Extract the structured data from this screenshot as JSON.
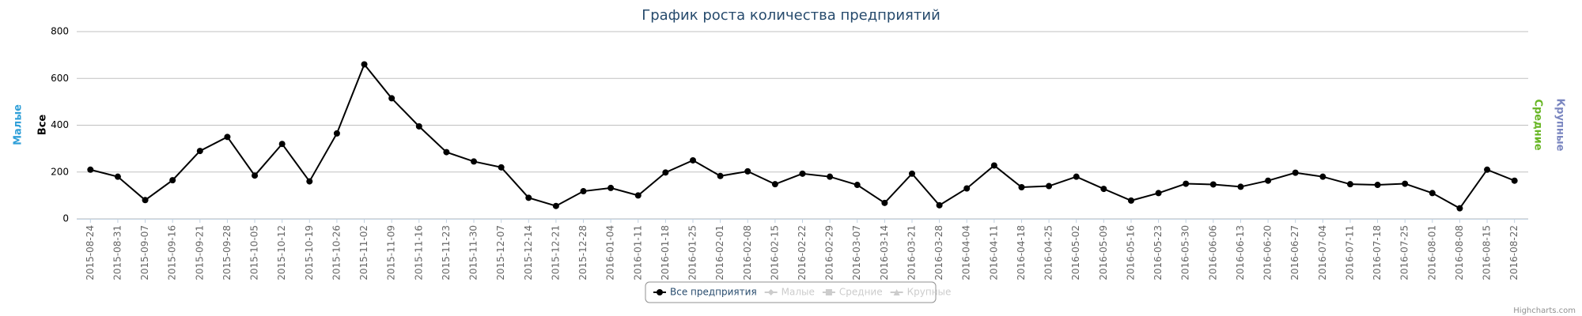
{
  "chart_data": {
    "type": "line",
    "title": "График роста количества предприятий",
    "categories": [
      "2015-08-24",
      "2015-08-31",
      "2015-09-07",
      "2015-09-16",
      "2015-09-21",
      "2015-09-28",
      "2015-10-05",
      "2015-10-12",
      "2015-10-19",
      "2015-10-26",
      "2015-11-02",
      "2015-11-09",
      "2015-11-16",
      "2015-11-23",
      "2015-11-30",
      "2015-12-07",
      "2015-12-14",
      "2015-12-21",
      "2015-12-28",
      "2016-01-04",
      "2016-01-11",
      "2016-01-18",
      "2016-01-25",
      "2016-02-01",
      "2016-02-08",
      "2016-02-15",
      "2016-02-22",
      "2016-02-29",
      "2016-03-07",
      "2016-03-14",
      "2016-03-21",
      "2016-03-28",
      "2016-04-04",
      "2016-04-11",
      "2016-04-18",
      "2016-04-25",
      "2016-05-02",
      "2016-05-09",
      "2016-05-16",
      "2016-05-23",
      "2016-05-30",
      "2016-06-06",
      "2016-06-13",
      "2016-06-20",
      "2016-06-27",
      "2016-07-04",
      "2016-07-11",
      "2016-07-18",
      "2016-07-25",
      "2016-08-01",
      "2016-08-08",
      "2016-08-15",
      "2016-08-22"
    ],
    "series": [
      {
        "name": "Все предприятия",
        "color": "#000000",
        "values": [
          210,
          180,
          80,
          165,
          290,
          350,
          185,
          320,
          160,
          365,
          660,
          515,
          395,
          285,
          245,
          220,
          90,
          55,
          118,
          132,
          100,
          198,
          250,
          183,
          203,
          148,
          193,
          180,
          145,
          68,
          193,
          58,
          130,
          228,
          135,
          140,
          180,
          128,
          78,
          110,
          150,
          147,
          137,
          163,
          197,
          180,
          148,
          145,
          150,
          110,
          45,
          210,
          163
        ]
      }
    ],
    "hidden_series": [
      "Малые",
      "Средние",
      "Крупные"
    ],
    "axis_titles": [
      {
        "text": "Малые",
        "color": "#2f9fd8",
        "side": "left"
      },
      {
        "text": "Все",
        "color": "#000000",
        "side": "left"
      },
      {
        "text": "Средние",
        "color": "#66b522",
        "side": "right"
      },
      {
        "text": "Крупные",
        "color": "#7a86c0",
        "side": "right"
      }
    ],
    "ylim": [
      0,
      800
    ],
    "yticks": [
      0,
      200,
      400,
      600,
      800
    ],
    "grid": true,
    "credits": "Highcharts.com"
  }
}
